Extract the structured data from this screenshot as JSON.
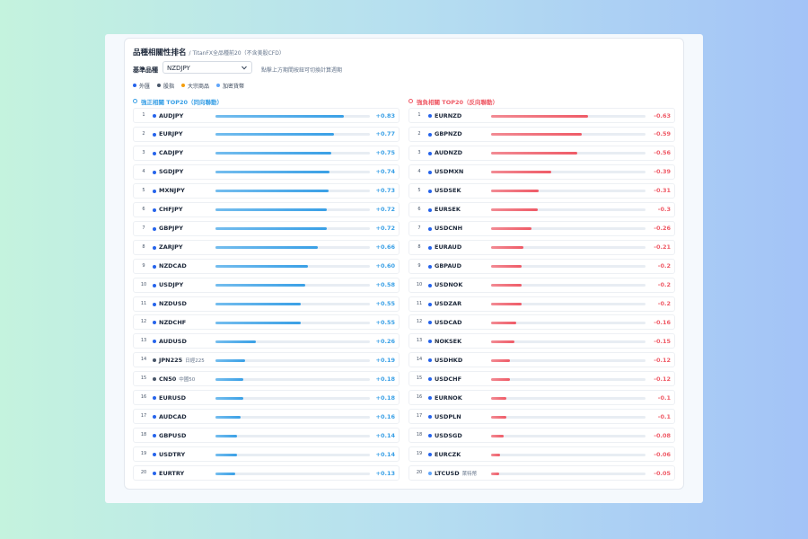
{
  "header": {
    "title": "品種相關性排名",
    "subtitle": "/ TitanFX全品種前20（不含美股CFD）"
  },
  "controls": {
    "label": "基準品種",
    "selected": "NZDJPY",
    "hint": "點擊上方期間按鈕可切換計算週期"
  },
  "legend": [
    {
      "label": "外匯",
      "color": "#2563eb"
    },
    {
      "label": "股指",
      "color": "#475569"
    },
    {
      "label": "大宗商品",
      "color": "#f59e0b"
    },
    {
      "label": "加密貨幣",
      "color": "#60a5fa"
    }
  ],
  "positive": {
    "title": "強正相關 TOP20（同向聯動）",
    "color": "#3aa0e6",
    "bar_color": "#74bdee",
    "rows": [
      {
        "rank": 1,
        "symbol": "AUDJPY",
        "value": 0.83,
        "value_label": "+0.83",
        "color": "#2563eb"
      },
      {
        "rank": 2,
        "symbol": "EURJPY",
        "value": 0.77,
        "value_label": "+0.77",
        "color": "#2563eb"
      },
      {
        "rank": 3,
        "symbol": "CADJPY",
        "value": 0.75,
        "value_label": "+0.75",
        "color": "#2563eb"
      },
      {
        "rank": 4,
        "symbol": "SGDJPY",
        "value": 0.74,
        "value_label": "+0.74",
        "color": "#2563eb"
      },
      {
        "rank": 5,
        "symbol": "MXNJPY",
        "value": 0.73,
        "value_label": "+0.73",
        "color": "#2563eb"
      },
      {
        "rank": 6,
        "symbol": "CHFJPY",
        "value": 0.72,
        "value_label": "+0.72",
        "color": "#2563eb"
      },
      {
        "rank": 7,
        "symbol": "GBPJPY",
        "value": 0.72,
        "value_label": "+0.72",
        "color": "#2563eb"
      },
      {
        "rank": 8,
        "symbol": "ZARJPY",
        "value": 0.66,
        "value_label": "+0.66",
        "color": "#2563eb"
      },
      {
        "rank": 9,
        "symbol": "NZDCAD",
        "value": 0.6,
        "value_label": "+0.60",
        "color": "#2563eb"
      },
      {
        "rank": 10,
        "symbol": "USDJPY",
        "value": 0.58,
        "value_label": "+0.58",
        "color": "#2563eb"
      },
      {
        "rank": 11,
        "symbol": "NZDUSD",
        "value": 0.55,
        "value_label": "+0.55",
        "color": "#2563eb"
      },
      {
        "rank": 12,
        "symbol": "NZDCHF",
        "value": 0.55,
        "value_label": "+0.55",
        "color": "#2563eb"
      },
      {
        "rank": 13,
        "symbol": "AUDUSD",
        "value": 0.26,
        "value_label": "+0.26",
        "color": "#2563eb"
      },
      {
        "rank": 14,
        "symbol": "JPN225",
        "note": "日經225",
        "value": 0.19,
        "value_label": "+0.19",
        "color": "#475569"
      },
      {
        "rank": 15,
        "symbol": "CN50",
        "note": "中國50",
        "value": 0.18,
        "value_label": "+0.18",
        "color": "#475569"
      },
      {
        "rank": 16,
        "symbol": "EURUSD",
        "value": 0.18,
        "value_label": "+0.18",
        "color": "#2563eb"
      },
      {
        "rank": 17,
        "symbol": "AUDCAD",
        "value": 0.16,
        "value_label": "+0.16",
        "color": "#2563eb"
      },
      {
        "rank": 18,
        "symbol": "GBPUSD",
        "value": 0.14,
        "value_label": "+0.14",
        "color": "#2563eb"
      },
      {
        "rank": 19,
        "symbol": "USDTRY",
        "value": 0.14,
        "value_label": "+0.14",
        "color": "#2563eb"
      },
      {
        "rank": 20,
        "symbol": "EURTRY",
        "value": 0.13,
        "value_label": "+0.13",
        "color": "#2563eb"
      }
    ]
  },
  "negative": {
    "title": "強負相關 TOP20（反向聯動）",
    "color": "#ef5b67",
    "bar_color": "#f28b94",
    "rows": [
      {
        "rank": 1,
        "symbol": "EURNZD",
        "value": -0.63,
        "color": "#2563eb"
      },
      {
        "rank": 2,
        "symbol": "GBPNZD",
        "value": -0.59,
        "color": "#2563eb"
      },
      {
        "rank": 3,
        "symbol": "AUDNZD",
        "value": -0.56,
        "color": "#2563eb"
      },
      {
        "rank": 4,
        "symbol": "USDMXN",
        "value": -0.39,
        "color": "#2563eb"
      },
      {
        "rank": 5,
        "symbol": "USDSEK",
        "value": -0.31,
        "color": "#2563eb"
      },
      {
        "rank": 6,
        "symbol": "EURSEK",
        "value": -0.3,
        "color": "#2563eb"
      },
      {
        "rank": 7,
        "symbol": "USDCNH",
        "value": -0.26,
        "color": "#2563eb"
      },
      {
        "rank": 8,
        "symbol": "EURAUD",
        "value": -0.21,
        "color": "#2563eb"
      },
      {
        "rank": 9,
        "symbol": "GBPAUD",
        "value": -0.2,
        "color": "#2563eb"
      },
      {
        "rank": 10,
        "symbol": "USDNOK",
        "value": -0.2,
        "color": "#2563eb"
      },
      {
        "rank": 11,
        "symbol": "USDZAR",
        "value": -0.2,
        "color": "#2563eb"
      },
      {
        "rank": 12,
        "symbol": "USDCAD",
        "value": -0.16,
        "color": "#2563eb"
      },
      {
        "rank": 13,
        "symbol": "NOKSEK",
        "value": -0.15,
        "color": "#2563eb"
      },
      {
        "rank": 14,
        "symbol": "USDHKD",
        "value": -0.12,
        "color": "#2563eb"
      },
      {
        "rank": 15,
        "symbol": "USDCHF",
        "value": -0.12,
        "color": "#2563eb"
      },
      {
        "rank": 16,
        "symbol": "EURNOK",
        "value": -0.1,
        "color": "#2563eb"
      },
      {
        "rank": 17,
        "symbol": "USDPLN",
        "value": -0.1,
        "color": "#2563eb"
      },
      {
        "rank": 18,
        "symbol": "USDSGD",
        "value": -0.08,
        "color": "#2563eb"
      },
      {
        "rank": 19,
        "symbol": "EURCZK",
        "value": -0.06,
        "color": "#2563eb"
      },
      {
        "rank": 20,
        "symbol": "LTCUSD",
        "note": "萊特幣",
        "value": -0.05,
        "color": "#60a5fa"
      }
    ]
  }
}
